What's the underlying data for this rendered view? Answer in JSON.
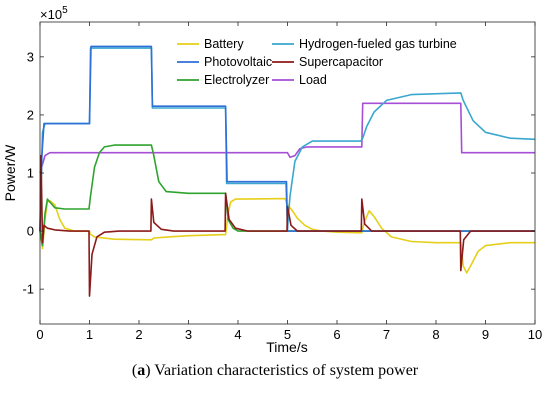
{
  "caption": {
    "label": "a",
    "text": " Variation characteristics of system power"
  },
  "chart_data": {
    "type": "line",
    "xlabel": "Time/s",
    "ylabel": "Power/W",
    "y_multiplier": "×10",
    "y_exponent": "5",
    "xlim": [
      0,
      10
    ],
    "ylim": [
      -1.6,
      3.6
    ],
    "x_ticks": [
      0,
      1,
      2,
      3,
      4,
      5,
      6,
      7,
      8,
      9,
      10
    ],
    "y_ticks": [
      -1,
      0,
      1,
      2,
      3
    ],
    "grid": false,
    "legend_position": "top-center",
    "series": [
      {
        "name": "Battery",
        "color": "#e6cf1a",
        "points": [
          [
            0,
            0
          ],
          [
            0.05,
            -0.3
          ],
          [
            0.1,
            0.2
          ],
          [
            0.15,
            0.5
          ],
          [
            0.2,
            0.52
          ],
          [
            0.3,
            0.45
          ],
          [
            0.4,
            0.2
          ],
          [
            0.5,
            0.05
          ],
          [
            0.7,
            0
          ],
          [
            0.9,
            0
          ],
          [
            1.0,
            0
          ],
          [
            1.01,
            -0.05
          ],
          [
            1.1,
            -0.1
          ],
          [
            1.5,
            -0.14
          ],
          [
            2.25,
            -0.15
          ],
          [
            2.3,
            -0.12
          ],
          [
            2.6,
            -0.1
          ],
          [
            3.0,
            -0.08
          ],
          [
            3.75,
            -0.06
          ],
          [
            3.8,
            0.3
          ],
          [
            3.85,
            0.5
          ],
          [
            3.95,
            0.55
          ],
          [
            4.95,
            0.56
          ],
          [
            5.0,
            0.45
          ],
          [
            5.1,
            0.35
          ],
          [
            5.2,
            0.22
          ],
          [
            5.35,
            0.1
          ],
          [
            5.5,
            0.03
          ],
          [
            5.7,
            0
          ],
          [
            6.0,
            -0.02
          ],
          [
            6.5,
            -0.03
          ],
          [
            6.55,
            0.15
          ],
          [
            6.65,
            0.35
          ],
          [
            6.75,
            0.25
          ],
          [
            6.9,
            0.05
          ],
          [
            7.1,
            -0.1
          ],
          [
            7.5,
            -0.18
          ],
          [
            8.0,
            -0.2
          ],
          [
            8.5,
            -0.2
          ],
          [
            8.55,
            -0.6
          ],
          [
            8.62,
            -0.72
          ],
          [
            8.7,
            -0.6
          ],
          [
            8.85,
            -0.35
          ],
          [
            9.0,
            -0.25
          ],
          [
            9.5,
            -0.2
          ],
          [
            10,
            -0.2
          ]
        ]
      },
      {
        "name": "Photovoltaic",
        "color": "#2e6fd8",
        "points": [
          [
            0,
            0
          ],
          [
            0.03,
            1.2
          ],
          [
            0.08,
            1.85
          ],
          [
            1.0,
            1.85
          ],
          [
            1.03,
            3.18
          ],
          [
            2.25,
            3.18
          ],
          [
            2.27,
            2.15
          ],
          [
            3.75,
            2.15
          ],
          [
            3.78,
            0.85
          ],
          [
            4.98,
            0.85
          ],
          [
            5.0,
            0
          ],
          [
            10,
            0
          ]
        ]
      },
      {
        "name": "Electrolyzer",
        "color": "#2fa32f",
        "points": [
          [
            0,
            0
          ],
          [
            0.05,
            -0.25
          ],
          [
            0.1,
            0.3
          ],
          [
            0.15,
            0.55
          ],
          [
            0.2,
            0.5
          ],
          [
            0.3,
            0.4
          ],
          [
            0.5,
            0.38
          ],
          [
            0.99,
            0.38
          ],
          [
            1.02,
            0.6
          ],
          [
            1.1,
            1.1
          ],
          [
            1.2,
            1.35
          ],
          [
            1.3,
            1.45
          ],
          [
            1.5,
            1.48
          ],
          [
            2.25,
            1.48
          ],
          [
            2.3,
            1.3
          ],
          [
            2.4,
            0.85
          ],
          [
            2.55,
            0.68
          ],
          [
            3.0,
            0.65
          ],
          [
            3.75,
            0.65
          ],
          [
            3.8,
            0.2
          ],
          [
            3.9,
            0.05
          ],
          [
            4.0,
            0
          ],
          [
            10,
            0
          ]
        ]
      },
      {
        "name": "Hydrogen-fueled gas turbine",
        "color": "#3aa7cf",
        "points": [
          [
            0,
            0
          ],
          [
            0.05,
            1.7
          ],
          [
            0.1,
            1.85
          ],
          [
            1.0,
            1.85
          ],
          [
            1.02,
            3.15
          ],
          [
            2.25,
            3.15
          ],
          [
            2.27,
            2.12
          ],
          [
            3.75,
            2.12
          ],
          [
            3.77,
            0.82
          ],
          [
            4.97,
            0.82
          ],
          [
            5.0,
            0.05
          ],
          [
            5.05,
            0.6
          ],
          [
            5.15,
            1.2
          ],
          [
            5.3,
            1.45
          ],
          [
            5.5,
            1.55
          ],
          [
            6.48,
            1.55
          ],
          [
            6.52,
            1.6
          ],
          [
            6.6,
            1.8
          ],
          [
            6.75,
            2.05
          ],
          [
            7.0,
            2.25
          ],
          [
            7.5,
            2.35
          ],
          [
            8.5,
            2.38
          ],
          [
            8.55,
            2.25
          ],
          [
            8.75,
            1.9
          ],
          [
            9.0,
            1.7
          ],
          [
            9.5,
            1.6
          ],
          [
            10,
            1.58
          ]
        ]
      },
      {
        "name": "Supercapacitor",
        "color": "#8b1a1a",
        "points": [
          [
            0,
            0
          ],
          [
            0.02,
            1.3
          ],
          [
            0.05,
            -0.2
          ],
          [
            0.08,
            0.1
          ],
          [
            0.15,
            0.05
          ],
          [
            0.3,
            0.02
          ],
          [
            0.6,
            0
          ],
          [
            0.99,
            0
          ],
          [
            1.0,
            -1.12
          ],
          [
            1.05,
            -0.4
          ],
          [
            1.15,
            -0.1
          ],
          [
            1.3,
            -0.02
          ],
          [
            1.6,
            0
          ],
          [
            2.24,
            0
          ],
          [
            2.25,
            0.55
          ],
          [
            2.3,
            0.15
          ],
          [
            2.45,
            0.03
          ],
          [
            2.7,
            0
          ],
          [
            3.74,
            0
          ],
          [
            3.75,
            0.65
          ],
          [
            3.82,
            0.2
          ],
          [
            3.95,
            0.05
          ],
          [
            4.2,
            0
          ],
          [
            4.99,
            0
          ],
          [
            5.0,
            0.42
          ],
          [
            5.07,
            0.1
          ],
          [
            5.2,
            0
          ],
          [
            6.49,
            0
          ],
          [
            6.5,
            0.55
          ],
          [
            6.56,
            0.12
          ],
          [
            6.7,
            0
          ],
          [
            8.49,
            0
          ],
          [
            8.5,
            -0.68
          ],
          [
            8.56,
            -0.15
          ],
          [
            8.7,
            0
          ],
          [
            10,
            0
          ]
        ]
      },
      {
        "name": "Load",
        "color": "#a64fd6",
        "points": [
          [
            0,
            1.0
          ],
          [
            0.1,
            1.3
          ],
          [
            0.2,
            1.35
          ],
          [
            5.0,
            1.35
          ],
          [
            5.05,
            1.27
          ],
          [
            5.15,
            1.3
          ],
          [
            5.25,
            1.42
          ],
          [
            5.4,
            1.45
          ],
          [
            6.5,
            1.45
          ],
          [
            6.52,
            2.2
          ],
          [
            8.5,
            2.2
          ],
          [
            8.52,
            1.35
          ],
          [
            10,
            1.35
          ]
        ]
      }
    ]
  }
}
